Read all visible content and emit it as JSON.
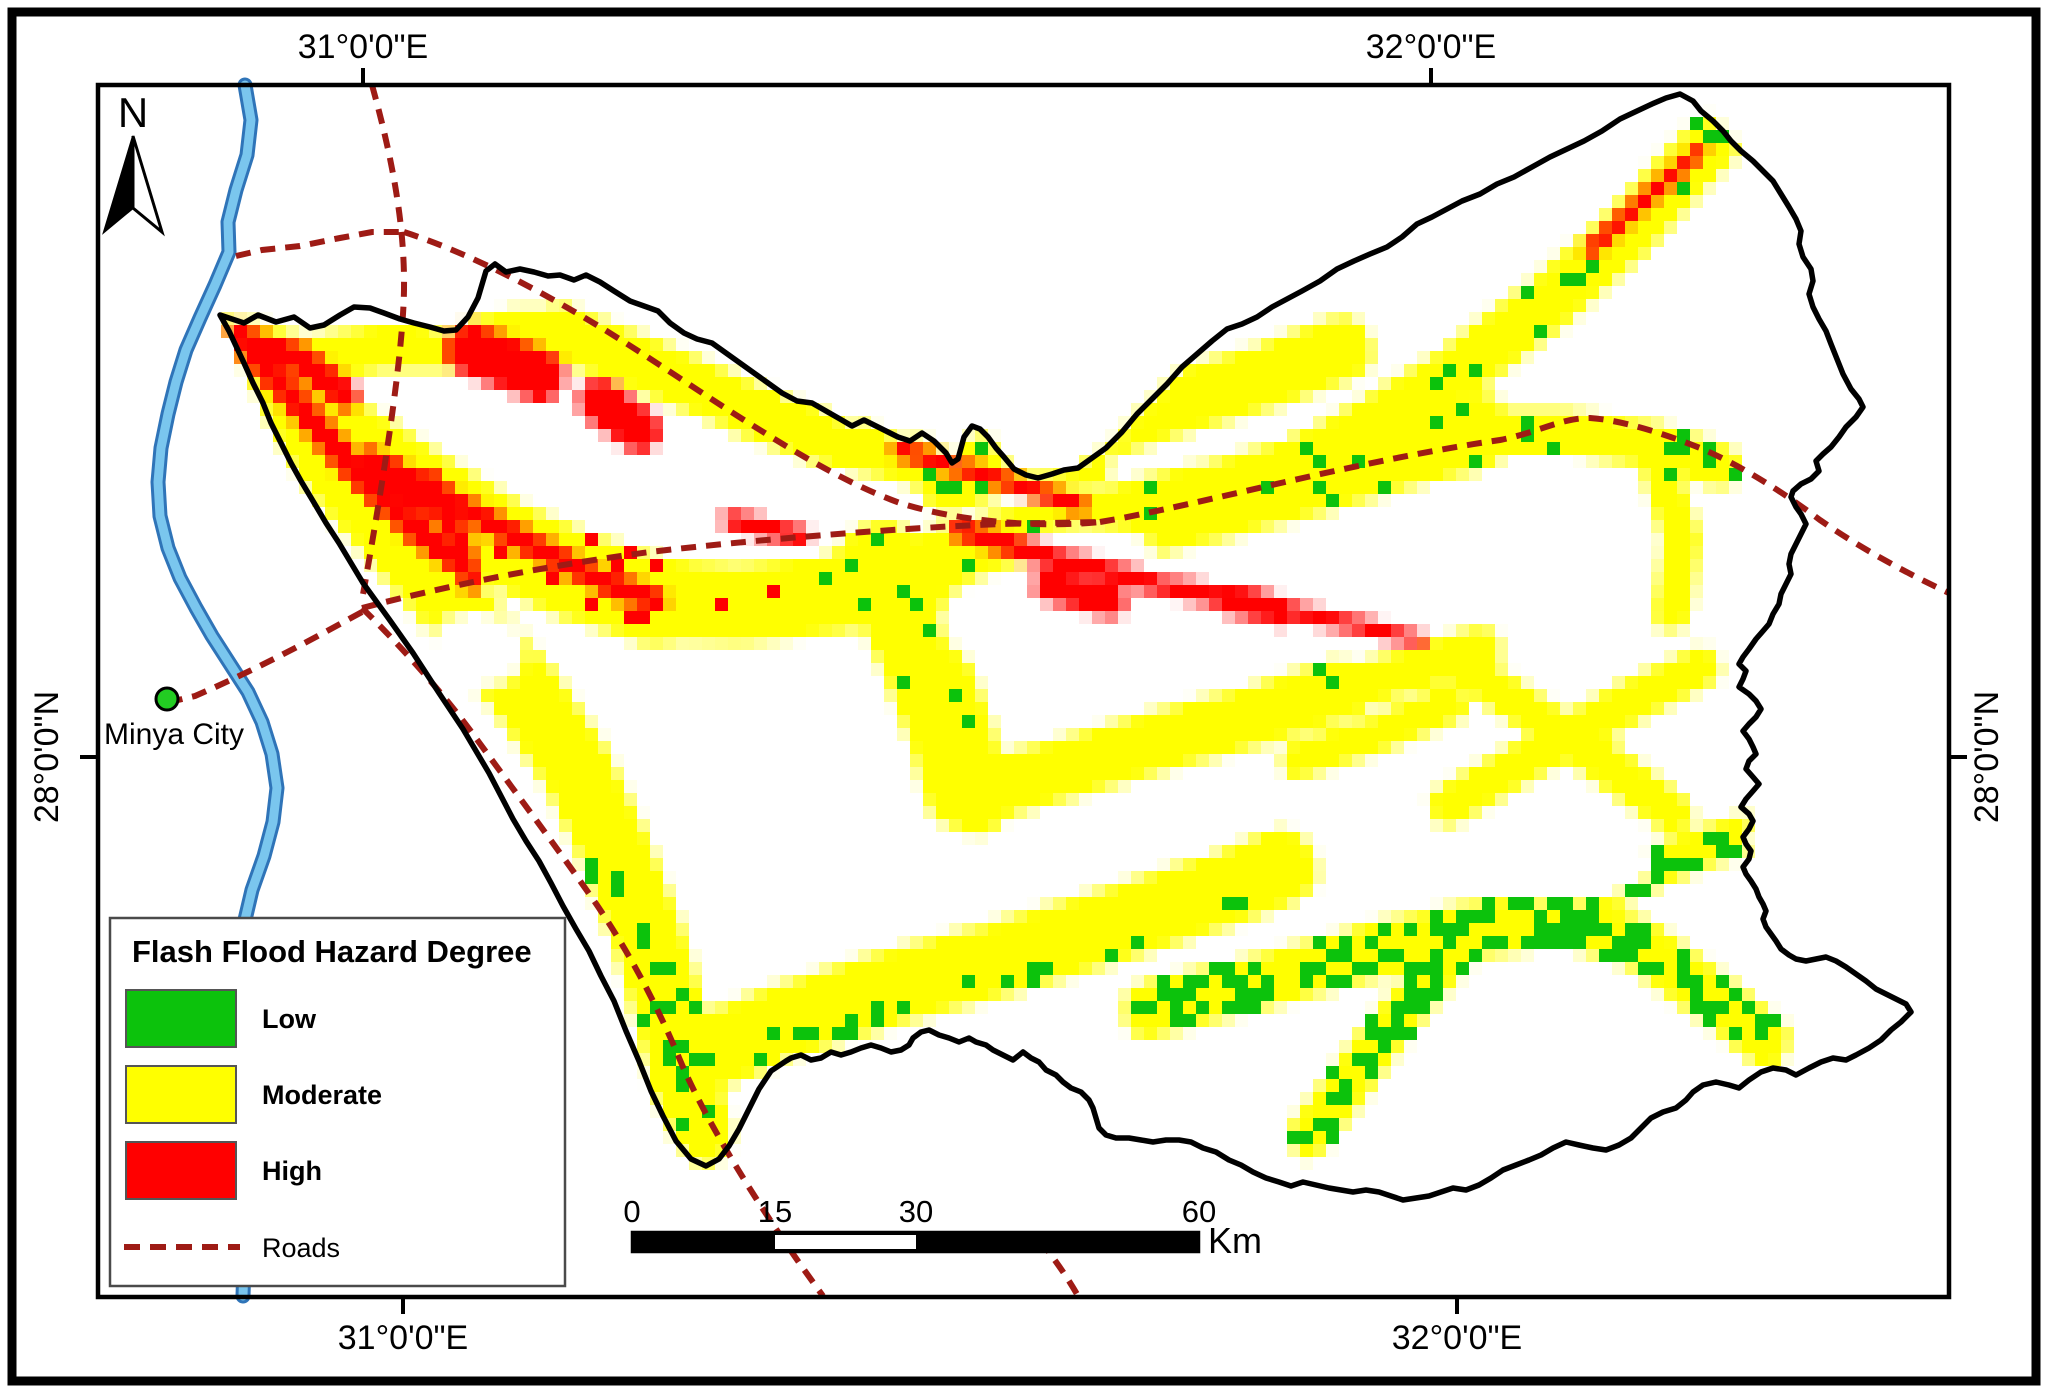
{
  "graticule": {
    "top": [
      "31°0'0\"E",
      "32°0'0\"E"
    ],
    "bottom": [
      "31°0'0\"E",
      "32°0'0\"E"
    ],
    "left": "28°0'0\"N",
    "right": "28°0'0\"N"
  },
  "north_indicator": "N",
  "city": {
    "name": "Minya City"
  },
  "legend": {
    "title": "Flash Flood Hazard Degree",
    "items": [
      {
        "label": "Low"
      },
      {
        "label": "Moderate"
      },
      {
        "label": "High"
      },
      {
        "label": "Roads"
      }
    ]
  },
  "scalebar": {
    "ticks": [
      "0",
      "15",
      "30",
      "60"
    ],
    "unit": "Km"
  },
  "colors": {
    "low": "#0cc20c",
    "moderate": "#ffff00",
    "high": "#ff0000",
    "roads": "#9e1b15",
    "river_edge": "#2f74b8",
    "river_fill": "#7ac6ee",
    "boundary": "#000000",
    "city_dot": "#22cc22",
    "background": "#ffffff"
  }
}
